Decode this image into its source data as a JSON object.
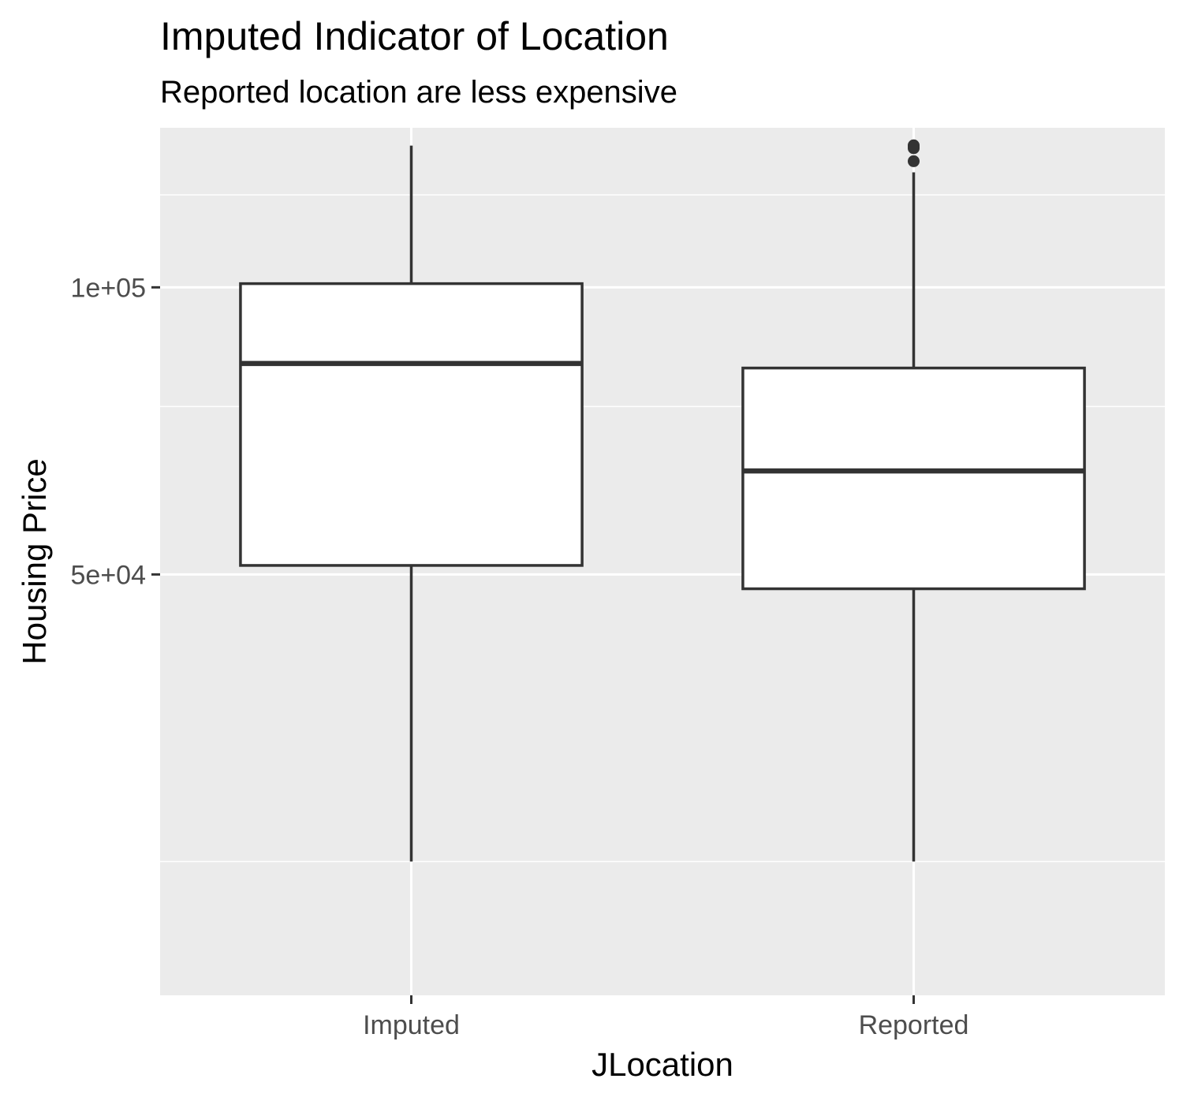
{
  "chart_data": {
    "type": "boxplot",
    "title": "Imputed Indicator of Location",
    "subtitle": "Reported location are less expensive",
    "xlabel": "JLocation",
    "ylabel": "Housing Price",
    "categories": [
      "Imputed",
      "Reported"
    ],
    "boxes": [
      {
        "category": "Imputed",
        "whisker_low": 25000,
        "q1": 51100,
        "median": 83200,
        "q3": 100900,
        "whisker_high": 140800,
        "outliers": []
      },
      {
        "category": "Reported",
        "whisker_low": 25000,
        "q1": 48300,
        "median": 64200,
        "q3": 82300,
        "whisker_high": 132000,
        "outliers": [
          135600,
          139900,
          140400,
          140900
        ]
      }
    ],
    "y_ticks": [
      {
        "value": 50000,
        "label": "5e+04"
      },
      {
        "value": 100000,
        "label": "1e+05"
      }
    ],
    "y_minor_ticks": [
      25000,
      75000,
      125000
    ],
    "ylim": [
      18100,
      147000
    ],
    "grid": true,
    "colors": {
      "panel": "#ebebeb",
      "grid": "#ffffff",
      "box_fill": "#ffffff",
      "box_line": "#333333",
      "tick_text": "#4d4d4d"
    }
  }
}
